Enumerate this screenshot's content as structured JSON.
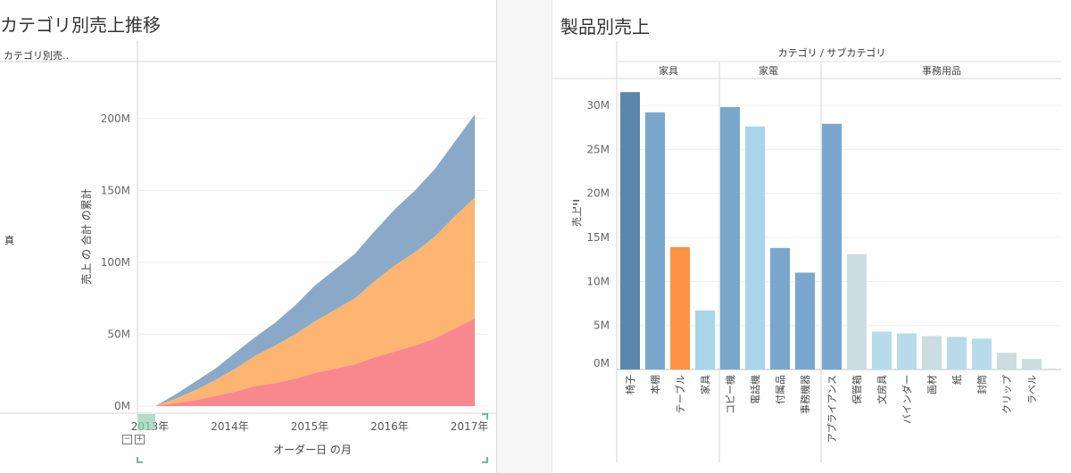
{
  "left": {
    "title": "カテゴリ別売上推移",
    "row_header": "カテゴリ別売..",
    "row_value": "真",
    "minus_glyph": "−",
    "plus_glyph": "+",
    "y_axis_title": "売上 の 合計 の累計",
    "x_axis_title": "オーダー日 の月",
    "y_ticks": [
      "0M",
      "50M",
      "100M",
      "150M",
      "200M"
    ],
    "x_ticks": [
      "2013年",
      "2014年",
      "2015年",
      "2016年",
      "2017年"
    ]
  },
  "right": {
    "title": "製品別売上",
    "header_title": "カテゴリ / サブカテゴリ",
    "y_axis_title": "売上",
    "y_ticks": [
      "0M",
      "5M",
      "10M",
      "15M",
      "20M",
      "25M",
      "30M"
    ],
    "categories": [
      "家具",
      "家電",
      "事務用品"
    ]
  },
  "colors": {
    "area_blue": "#8aa9c8",
    "area_orange": "#fdb571",
    "area_red": "#f9888e",
    "bar_dark": "#5b87ae",
    "bar_mid": "#79a7cd",
    "bar_light": "#a8d5ea",
    "bar_lighter": "#b8dbec",
    "bar_grey": "#ccdde2",
    "bar_orange": "#fd9343"
  },
  "chart_data": [
    {
      "type": "area",
      "stacked": true,
      "cumulative": true,
      "title": "カテゴリ別売上推移",
      "xlabel": "オーダー日 の月",
      "ylabel": "売上 の 合計 の累計",
      "ylim": [
        0,
        240
      ],
      "unit": "M",
      "x": [
        2013.0,
        2013.25,
        2013.5,
        2013.75,
        2014.0,
        2014.25,
        2014.5,
        2014.75,
        2015.0,
        2015.25,
        2015.5,
        2015.75,
        2016.0,
        2016.25,
        2016.5,
        2016.75,
        2017.0
      ],
      "x_tick_labels": [
        "2013年",
        "2014年",
        "2015年",
        "2016年",
        "2017年"
      ],
      "series": [
        {
          "values": [
            0,
            2,
            4,
            7,
            10,
            14,
            16,
            19,
            23,
            26,
            29,
            34,
            38,
            42,
            47,
            54,
            61
          ]
        },
        {
          "values": [
            0,
            3,
            7,
            11,
            16,
            21,
            26,
            31,
            36,
            41,
            46,
            53,
            60,
            65,
            71,
            78,
            84
          ]
        },
        {
          "values": [
            0,
            3,
            6,
            8,
            11,
            13,
            16,
            20,
            25,
            28,
            31,
            35,
            39,
            43,
            47,
            52,
            58
          ]
        }
      ]
    },
    {
      "type": "bar",
      "title": "製品別売上",
      "ylabel": "売上",
      "ylim": [
        0,
        33
      ],
      "unit": "M",
      "groups": [
        {
          "name": "家具",
          "categories": [
            "椅子",
            "本棚",
            "テーブル",
            "家具"
          ],
          "values": [
            31.5,
            29.2,
            13.9,
            6.7
          ]
        },
        {
          "name": "家電",
          "categories": [
            "コピー機",
            "電話機",
            "付属品",
            "事務機器"
          ],
          "values": [
            29.8,
            27.6,
            13.8,
            11.0
          ]
        },
        {
          "name": "事務用品",
          "categories": [
            "アプライアンス",
            "保管箱",
            "文房具",
            "バインダー",
            "画材",
            "紙",
            "封筒",
            "クリップ",
            "ラベル"
          ],
          "values": [
            27.9,
            13.1,
            4.3,
            4.1,
            3.8,
            3.7,
            3.5,
            1.9,
            1.2
          ]
        }
      ]
    }
  ]
}
